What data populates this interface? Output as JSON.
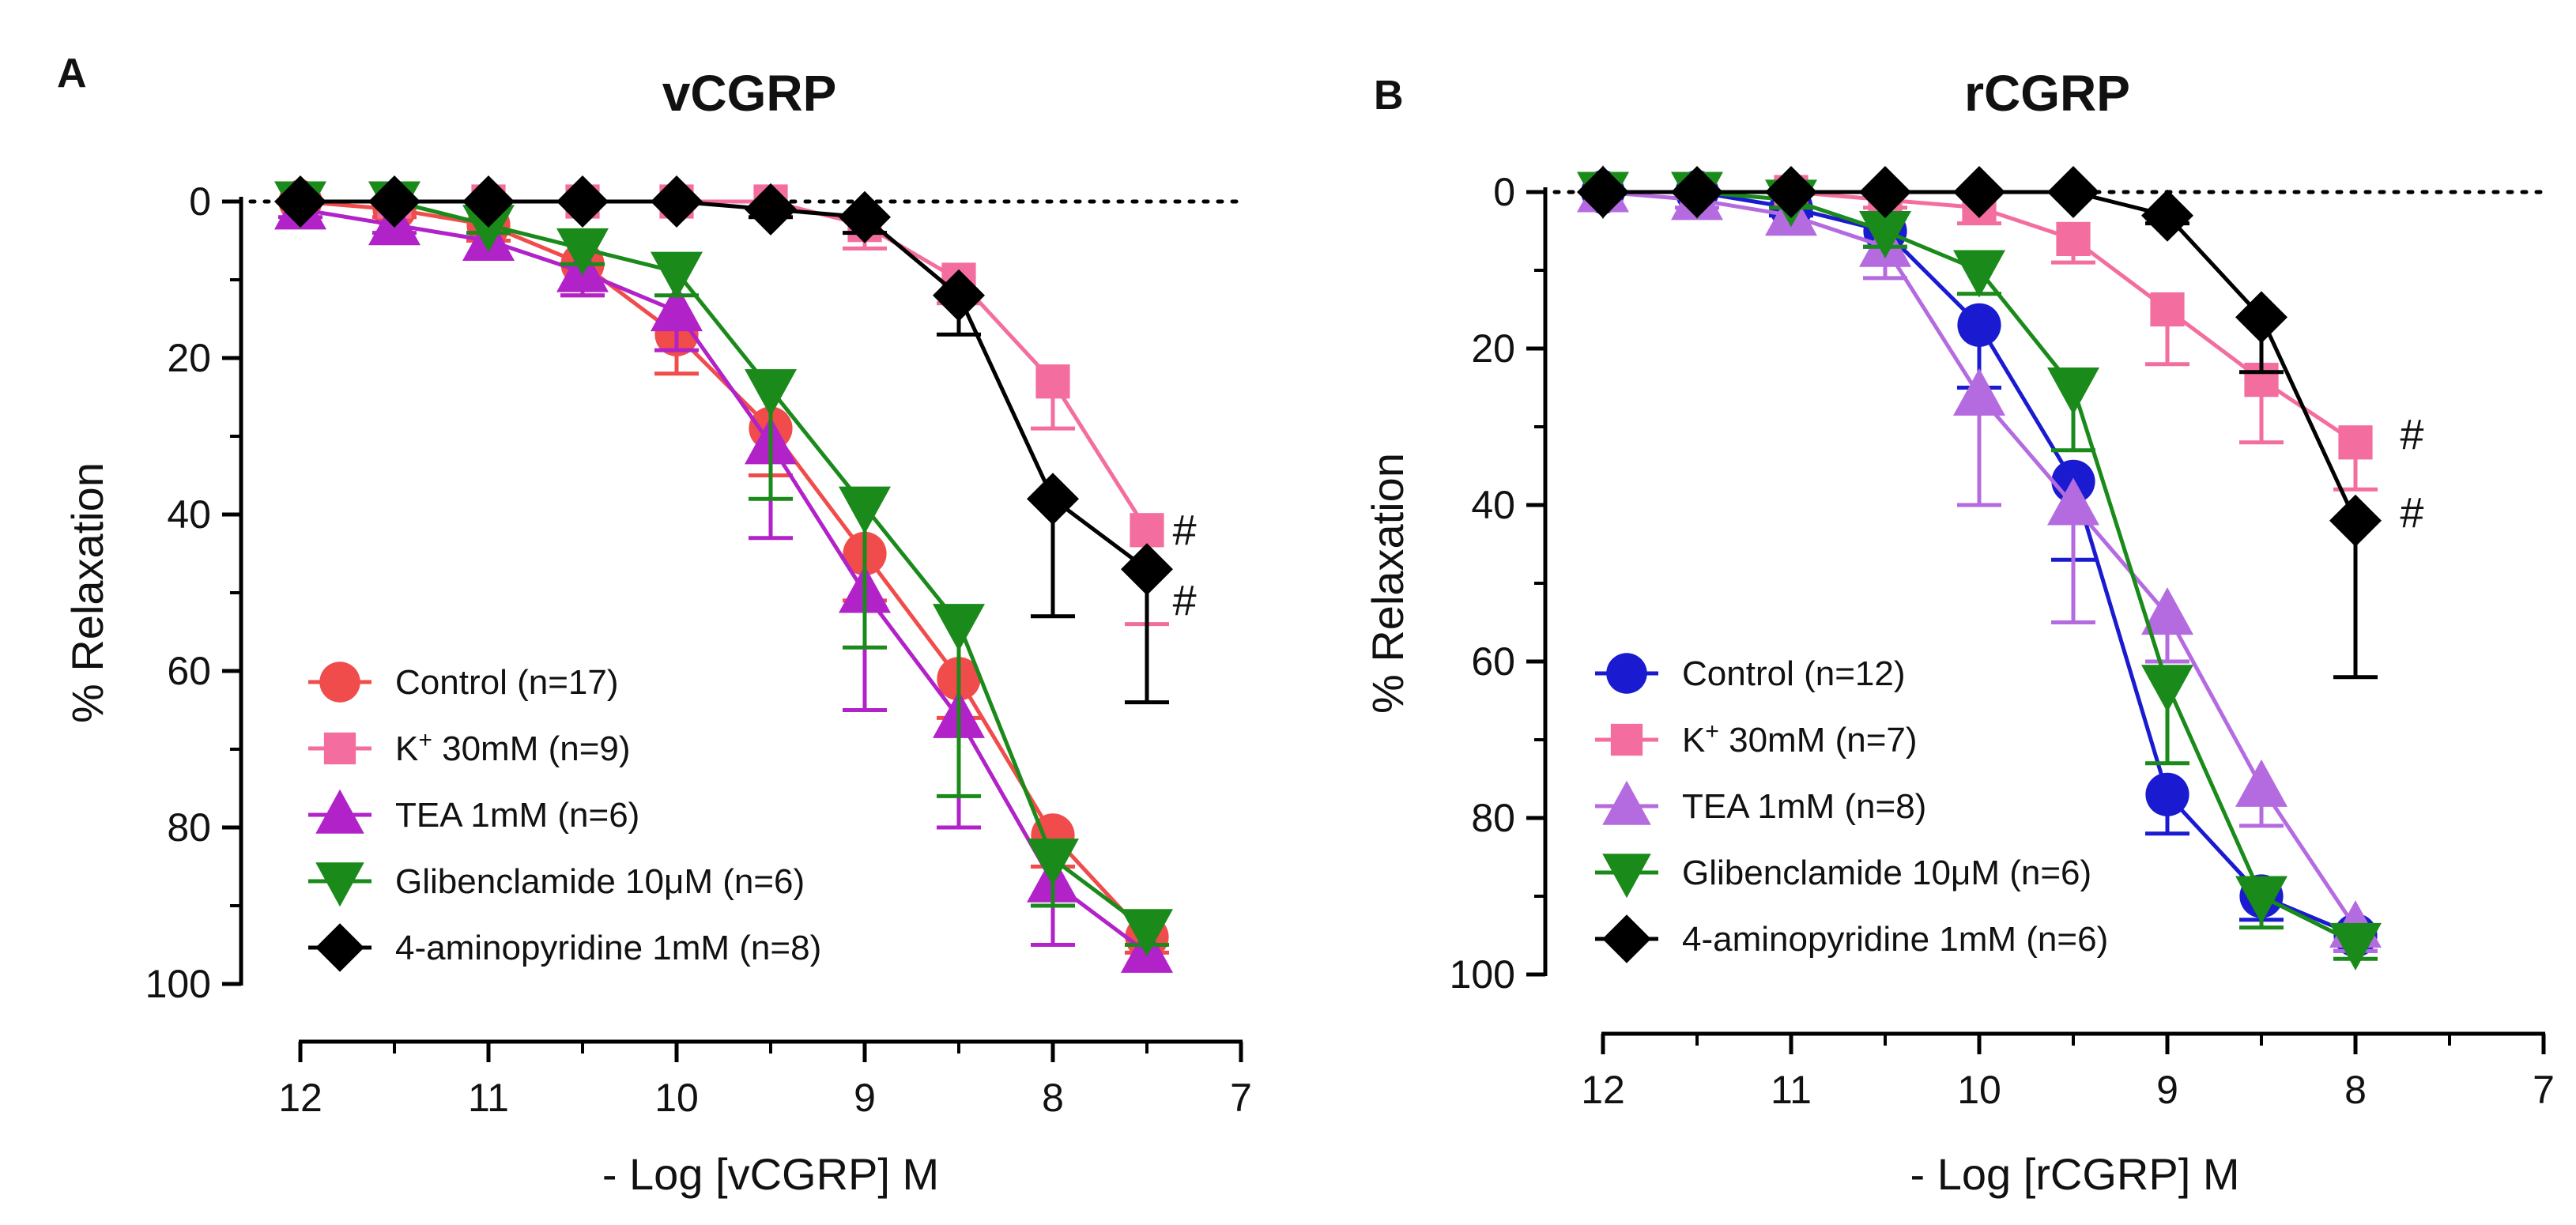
{
  "chart_data": [
    {
      "panel": "A",
      "type": "line",
      "title": "vCGRP",
      "xlabel": "- Log [vCGRP] M",
      "ylabel": "% Relaxation",
      "xlim": [
        12,
        7
      ],
      "ylim": [
        0,
        100
      ],
      "y_inverted": true,
      "x_ticks": [
        12,
        11,
        10,
        9,
        8,
        7
      ],
      "y_ticks": [
        0,
        20,
        40,
        60,
        80,
        100
      ],
      "reference_line": 0,
      "annotations": [
        {
          "text": "#",
          "x": 7.3,
          "y": 42
        },
        {
          "text": "#",
          "x": 7.3,
          "y": 51
        }
      ],
      "series": [
        {
          "name": "Control (n=17)",
          "color": "#f04c4c",
          "marker": "circle",
          "x": [
            12,
            11.5,
            11,
            10.5,
            10,
            9.5,
            9,
            8.5,
            8,
            7.5
          ],
          "y": [
            0,
            1,
            3,
            8,
            17,
            29,
            45,
            61,
            81,
            94
          ],
          "err": [
            0,
            1,
            2,
            4,
            5,
            6,
            6,
            5,
            4,
            2
          ]
        },
        {
          "name": "K+ 30mM (n=9)",
          "name_main": "K",
          "name_sup": "+",
          "name_rest": " 30mM (n=9)",
          "color": "#f36e9f",
          "marker": "square",
          "x": [
            12,
            11.5,
            11,
            10.5,
            10,
            9.5,
            9,
            8.5,
            8,
            7.5
          ],
          "y": [
            0,
            0,
            0,
            0,
            0,
            0,
            3,
            10,
            23,
            42
          ],
          "err": [
            0,
            0,
            0,
            0,
            0,
            1,
            3,
            3,
            6,
            12
          ]
        },
        {
          "name": "TEA 1mM (n=6)",
          "color": "#b122c8",
          "marker": "triangle-up",
          "x": [
            12,
            11.5,
            11,
            10.5,
            10,
            9.5,
            9,
            8.5,
            8,
            7.5
          ],
          "y": [
            1,
            3,
            5,
            9,
            14,
            31,
            50,
            66,
            87,
            96
          ],
          "err": [
            1,
            1,
            2,
            3,
            5,
            12,
            15,
            14,
            8,
            2
          ]
        },
        {
          "name": "Glibenclamide 10μM (n=6)",
          "color": "#1a8a1a",
          "marker": "triangle-down",
          "x": [
            12,
            11.5,
            11,
            10.5,
            10,
            9.5,
            9,
            8.5,
            8,
            7.5
          ],
          "y": [
            0,
            0,
            3,
            6,
            9,
            24,
            39,
            54,
            84,
            93
          ],
          "err": [
            0,
            0,
            1,
            2,
            3,
            14,
            18,
            22,
            6,
            2
          ]
        },
        {
          "name": "4-aminopyridine 1mM (n=8)",
          "color": "#000000",
          "marker": "diamond",
          "x": [
            12,
            11.5,
            11,
            10.5,
            10,
            9.5,
            9,
            8.5,
            8,
            7.5
          ],
          "y": [
            0,
            0,
            0,
            0,
            0,
            1,
            2,
            12,
            38,
            47
          ],
          "err": [
            0,
            0,
            0,
            0,
            0,
            1,
            2,
            5,
            15,
            17
          ]
        }
      ]
    },
    {
      "panel": "B",
      "type": "line",
      "title": "rCGRP",
      "xlabel": "- Log [rCGRP] M",
      "ylabel": "% Relaxation",
      "xlim": [
        12,
        7
      ],
      "ylim": [
        0,
        100
      ],
      "y_inverted": true,
      "x_ticks": [
        12,
        11,
        10,
        9,
        8,
        7
      ],
      "y_ticks": [
        0,
        20,
        40,
        60,
        80,
        100
      ],
      "reference_line": 0,
      "annotations": [
        {
          "text": "#",
          "x": 7.7,
          "y": 31
        },
        {
          "text": "#",
          "x": 7.7,
          "y": 41
        }
      ],
      "series": [
        {
          "name": "Control (n=12)",
          "color": "#1a1ad0",
          "marker": "circle",
          "x": [
            12,
            11.5,
            11,
            10.5,
            10,
            9.5,
            9,
            8.5,
            8
          ],
          "y": [
            0,
            0,
            2,
            5,
            17,
            37,
            77,
            90,
            95
          ],
          "err": [
            0,
            0,
            1,
            2,
            8,
            10,
            5,
            3,
            2
          ]
        },
        {
          "name": "K+ 30mM (n=7)",
          "name_main": "K",
          "name_sup": "+",
          "name_rest": " 30mM (n=7)",
          "color": "#f36e9f",
          "marker": "square",
          "x": [
            12,
            11.5,
            11,
            10.5,
            10,
            9.5,
            9,
            8.5,
            8
          ],
          "y": [
            0,
            0,
            0,
            1,
            2,
            6,
            15,
            24,
            32
          ],
          "err": [
            0,
            0,
            0,
            1,
            2,
            3,
            7,
            8,
            6
          ]
        },
        {
          "name": "TEA 1mM (n=8)",
          "color": "#b56be0",
          "marker": "triangle-up",
          "x": [
            12,
            11.5,
            11,
            10.5,
            10,
            9.5,
            9,
            8.5,
            8
          ],
          "y": [
            0,
            1,
            3,
            7,
            26,
            40,
            54,
            76,
            94
          ],
          "err": [
            0,
            1,
            2,
            4,
            14,
            15,
            6,
            5,
            3
          ]
        },
        {
          "name": "Glibenclamide 10μM (n=6)",
          "color": "#1a8a1a",
          "marker": "triangle-down",
          "x": [
            12,
            11.5,
            11,
            10.5,
            10,
            9.5,
            9,
            8.5,
            8
          ],
          "y": [
            0,
            0,
            1,
            5,
            10,
            25,
            63,
            90,
            96
          ],
          "err": [
            0,
            0,
            1,
            2,
            3,
            8,
            10,
            4,
            2
          ]
        },
        {
          "name": "4-aminopyridine 1mM (n=6)",
          "color": "#000000",
          "marker": "diamond",
          "x": [
            12,
            11.5,
            11,
            10.5,
            10,
            9.5,
            9,
            8.5,
            8
          ],
          "y": [
            0,
            0,
            0,
            0,
            0,
            0,
            3,
            16,
            42
          ],
          "err": [
            0,
            0,
            0,
            0,
            0,
            0,
            1,
            7,
            20
          ]
        }
      ]
    }
  ]
}
